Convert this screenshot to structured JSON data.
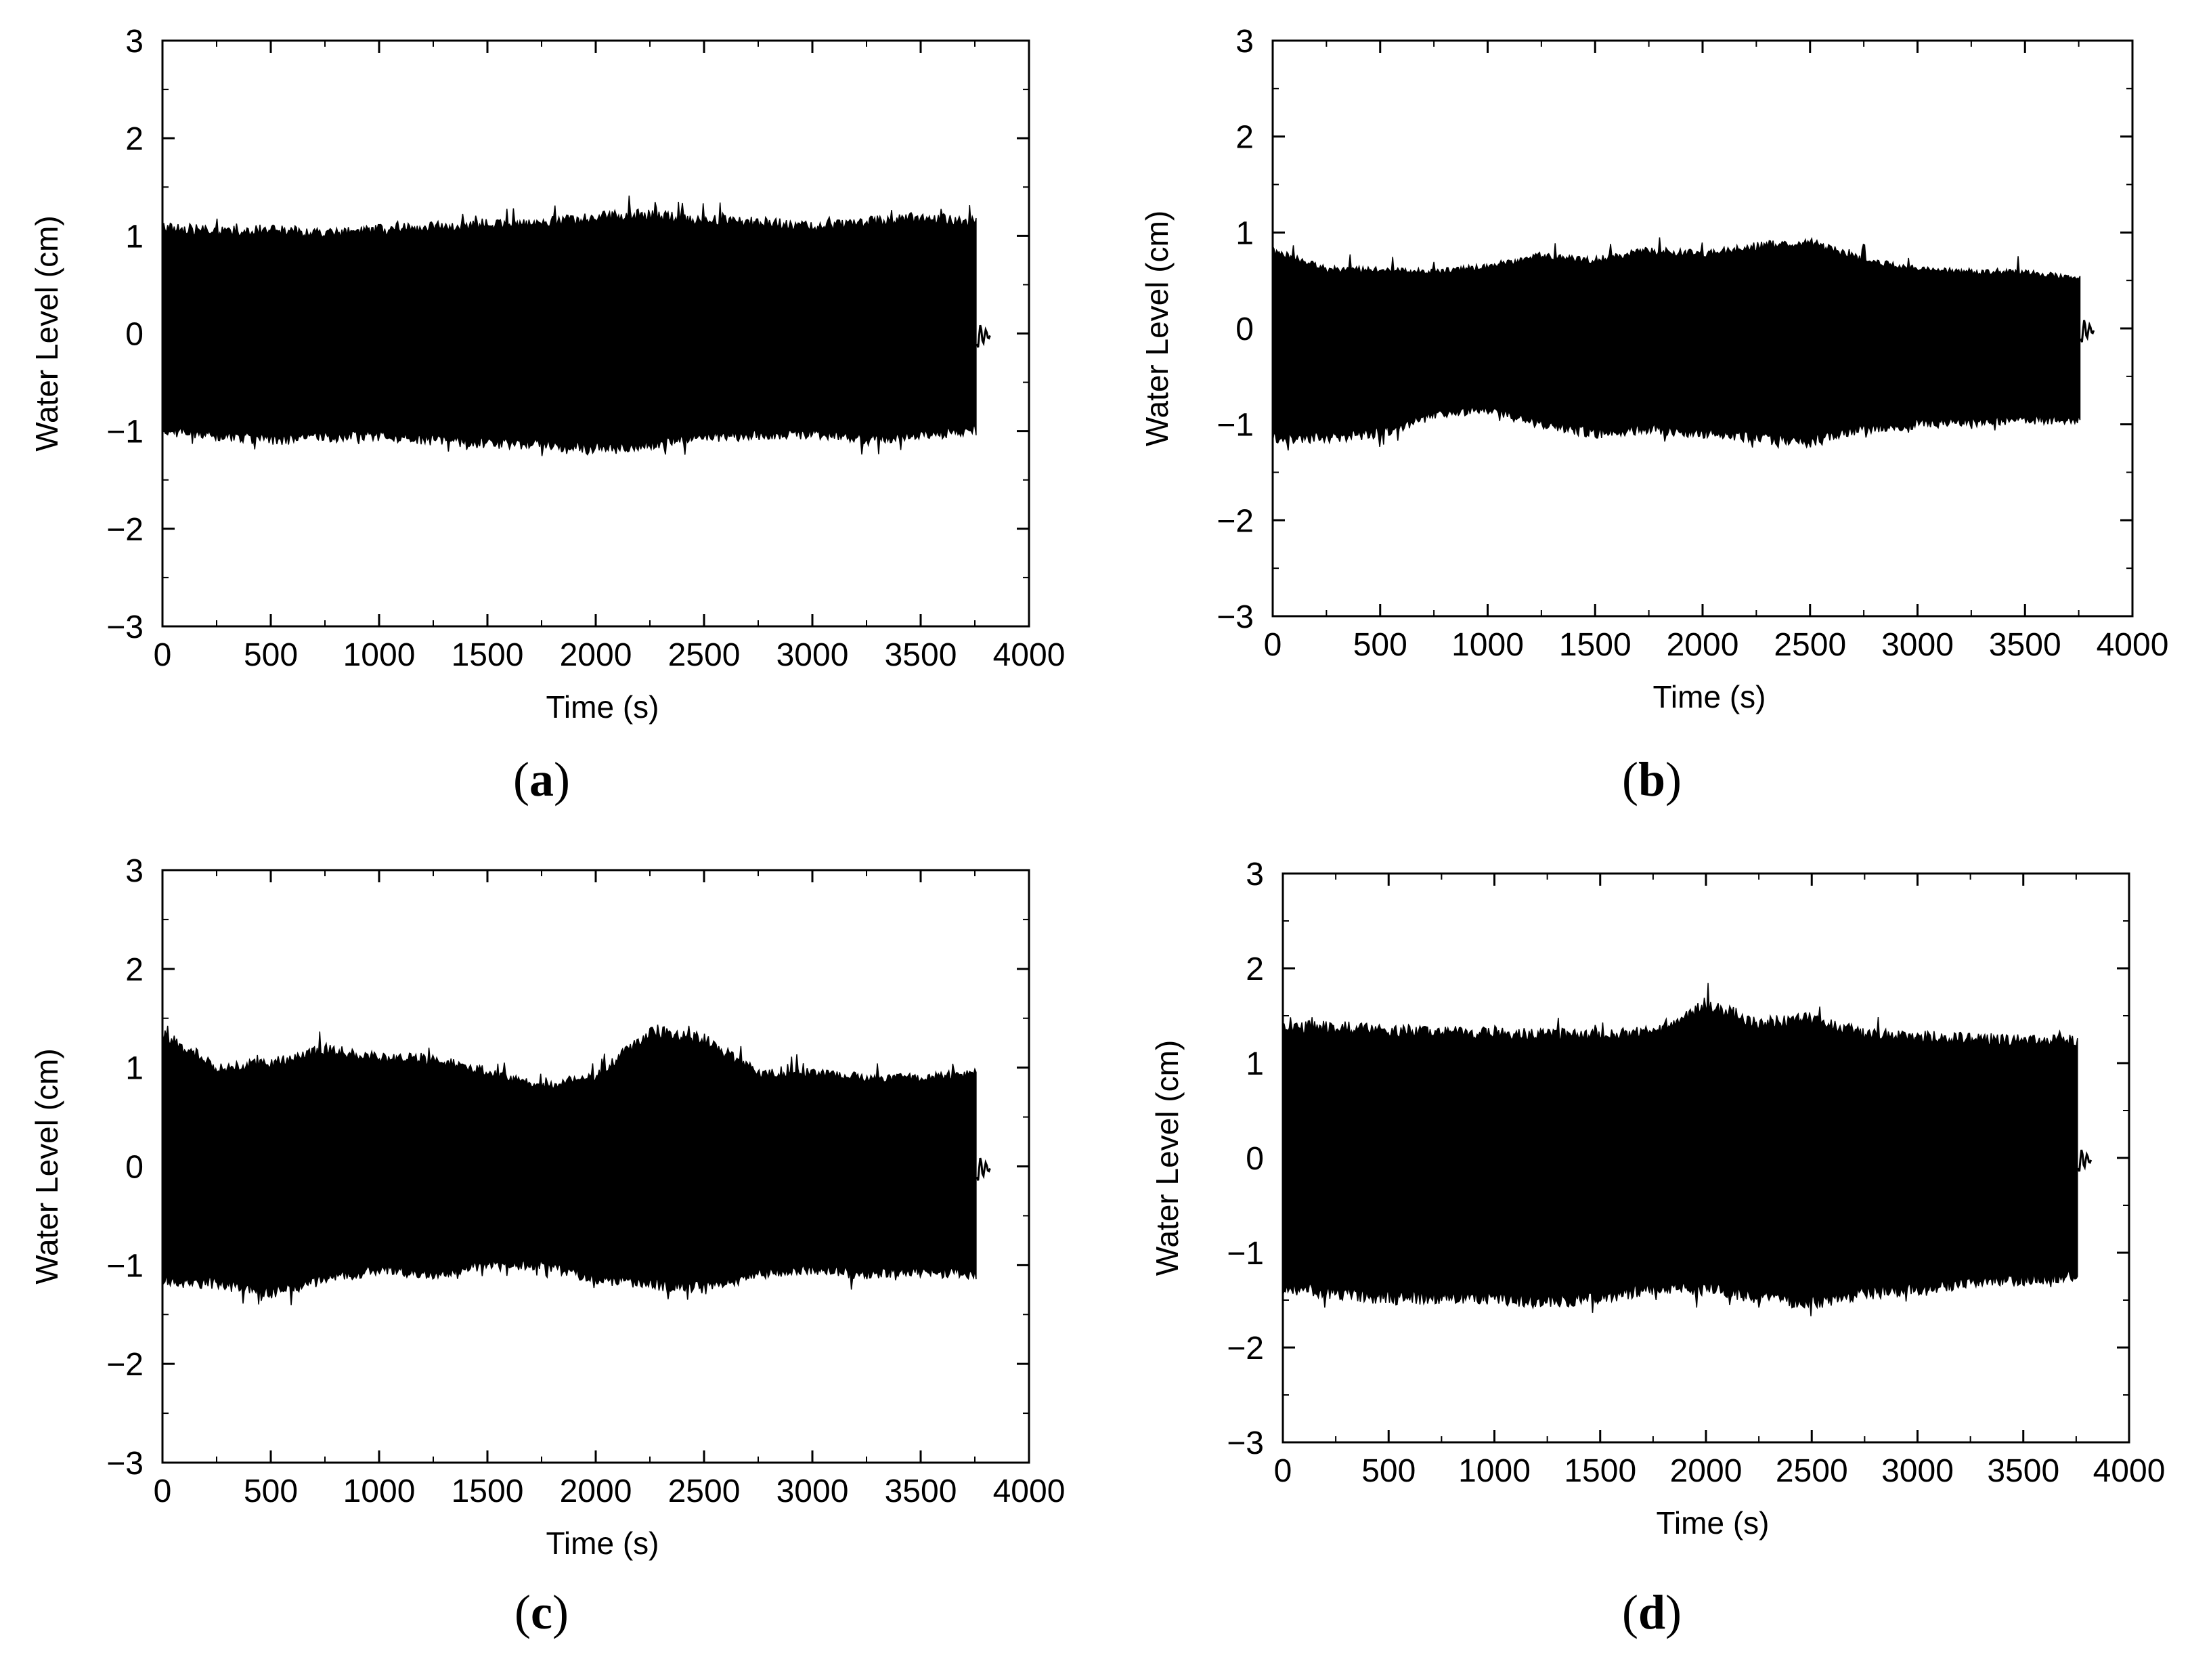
{
  "chart_data": [
    {
      "panel": "a",
      "caption_open": "(",
      "caption_letter": "a",
      "caption_close": ")",
      "type": "line",
      "title": "",
      "xlabel": "Time (s)",
      "ylabel": "Water Level (cm)",
      "xlim": [
        0,
        4000
      ],
      "ylim": [
        -3,
        3
      ],
      "xticks": [
        "0",
        "500",
        "1000",
        "1500",
        "2000",
        "2500",
        "3000",
        "3500",
        "4000"
      ],
      "yticks": [
        "3",
        "2",
        "1",
        "0",
        "−1",
        "−2",
        "−3"
      ],
      "grid": false,
      "series": [
        {
          "name": "water level",
          "signal_end": 3760,
          "tail_end": 3820,
          "x": [
            0,
            250,
            500,
            750,
            1000,
            1250,
            1500,
            1750,
            2000,
            2250,
            2500,
            2750,
            3000,
            3250,
            3500,
            3750
          ],
          "upper": [
            1.15,
            1.1,
            1.12,
            1.08,
            1.12,
            1.15,
            1.18,
            1.2,
            1.25,
            1.28,
            1.22,
            1.2,
            1.15,
            1.2,
            1.25,
            1.2
          ],
          "lower": [
            -1.05,
            -1.1,
            -1.15,
            -1.12,
            -1.1,
            -1.15,
            -1.18,
            -1.2,
            -1.25,
            -1.2,
            -1.12,
            -1.1,
            -1.08,
            -1.15,
            -1.1,
            -1.05
          ]
        }
      ]
    },
    {
      "panel": "b",
      "caption_open": "(",
      "caption_letter": "b",
      "caption_close": ")",
      "type": "line",
      "title": "",
      "xlabel": "Time (s)",
      "ylabel": "Water Level (cm)",
      "xlim": [
        0,
        4000
      ],
      "ylim": [
        -3,
        3
      ],
      "xticks": [
        "0",
        "500",
        "1000",
        "1500",
        "2000",
        "2500",
        "3000",
        "3500",
        "4000"
      ],
      "yticks": [
        "3",
        "2",
        "1",
        "0",
        "−1",
        "−2",
        "−3"
      ],
      "grid": false,
      "series": [
        {
          "name": "water level",
          "signal_end": 3760,
          "tail_end": 3820,
          "x": [
            0,
            250,
            500,
            750,
            1000,
            1250,
            1500,
            1750,
            2000,
            2250,
            2500,
            2750,
            3000,
            3250,
            3500,
            3750
          ],
          "upper": [
            0.85,
            0.65,
            0.65,
            0.62,
            0.68,
            0.8,
            0.75,
            0.85,
            0.82,
            0.9,
            0.95,
            0.75,
            0.65,
            0.62,
            0.62,
            0.55
          ],
          "lower": [
            -1.2,
            -1.2,
            -1.15,
            -0.95,
            -0.9,
            -1.05,
            -1.15,
            -1.1,
            -1.15,
            -1.2,
            -1.25,
            -1.1,
            -1.05,
            -1.02,
            -1.0,
            -1.0
          ]
        }
      ]
    },
    {
      "panel": "c",
      "caption_open": "(",
      "caption_letter": "c",
      "caption_close": ")",
      "type": "line",
      "title": "",
      "xlabel": "Time (s)",
      "ylabel": "Water Level (cm)",
      "xlim": [
        0,
        4000
      ],
      "ylim": [
        -3,
        3
      ],
      "xticks": [
        "0",
        "500",
        "1000",
        "1500",
        "2000",
        "2500",
        "3000",
        "3500",
        "4000"
      ],
      "yticks": [
        "3",
        "2",
        "1",
        "0",
        "−1",
        "−2",
        "−3"
      ],
      "grid": false,
      "series": [
        {
          "name": "water level",
          "signal_end": 3760,
          "tail_end": 3820,
          "x": [
            0,
            250,
            500,
            750,
            1000,
            1250,
            1500,
            1750,
            2000,
            2250,
            2500,
            2750,
            3000,
            3250,
            3500,
            3750
          ],
          "upper": [
            1.4,
            1.05,
            1.1,
            1.25,
            1.15,
            1.15,
            1.0,
            0.85,
            0.95,
            1.45,
            1.35,
            1.0,
            1.0,
            0.95,
            0.95,
            1.0
          ],
          "lower": [
            -1.2,
            -1.25,
            -1.35,
            -1.2,
            -1.1,
            -1.15,
            -1.05,
            -1.05,
            -1.2,
            -1.25,
            -1.3,
            -1.15,
            -1.1,
            -1.15,
            -1.1,
            -1.15
          ]
        }
      ]
    },
    {
      "panel": "d",
      "caption_open": "(",
      "caption_letter": "d",
      "caption_close": ")",
      "type": "line",
      "title": "",
      "xlabel": "Time (s)",
      "ylabel": "Water Level (cm)",
      "xlim": [
        0,
        4000
      ],
      "ylim": [
        -3,
        3
      ],
      "xticks": [
        "0",
        "500",
        "1000",
        "1500",
        "2000",
        "2500",
        "3000",
        "3500",
        "4000"
      ],
      "yticks": [
        "3",
        "2",
        "1",
        "0",
        "−1",
        "−2",
        "−3"
      ],
      "grid": false,
      "series": [
        {
          "name": "water level",
          "signal_end": 3760,
          "tail_end": 3820,
          "x": [
            0,
            250,
            500,
            750,
            1000,
            1250,
            1500,
            1750,
            2000,
            2250,
            2500,
            2750,
            3000,
            3250,
            3500,
            3750
          ],
          "upper": [
            1.45,
            1.45,
            1.42,
            1.4,
            1.38,
            1.38,
            1.35,
            1.4,
            1.7,
            1.5,
            1.55,
            1.38,
            1.35,
            1.32,
            1.3,
            1.3
          ],
          "lower": [
            -1.45,
            -1.5,
            -1.55,
            -1.55,
            -1.55,
            -1.6,
            -1.55,
            -1.45,
            -1.45,
            -1.55,
            -1.6,
            -1.5,
            -1.45,
            -1.4,
            -1.35,
            -1.3
          ]
        }
      ]
    }
  ]
}
